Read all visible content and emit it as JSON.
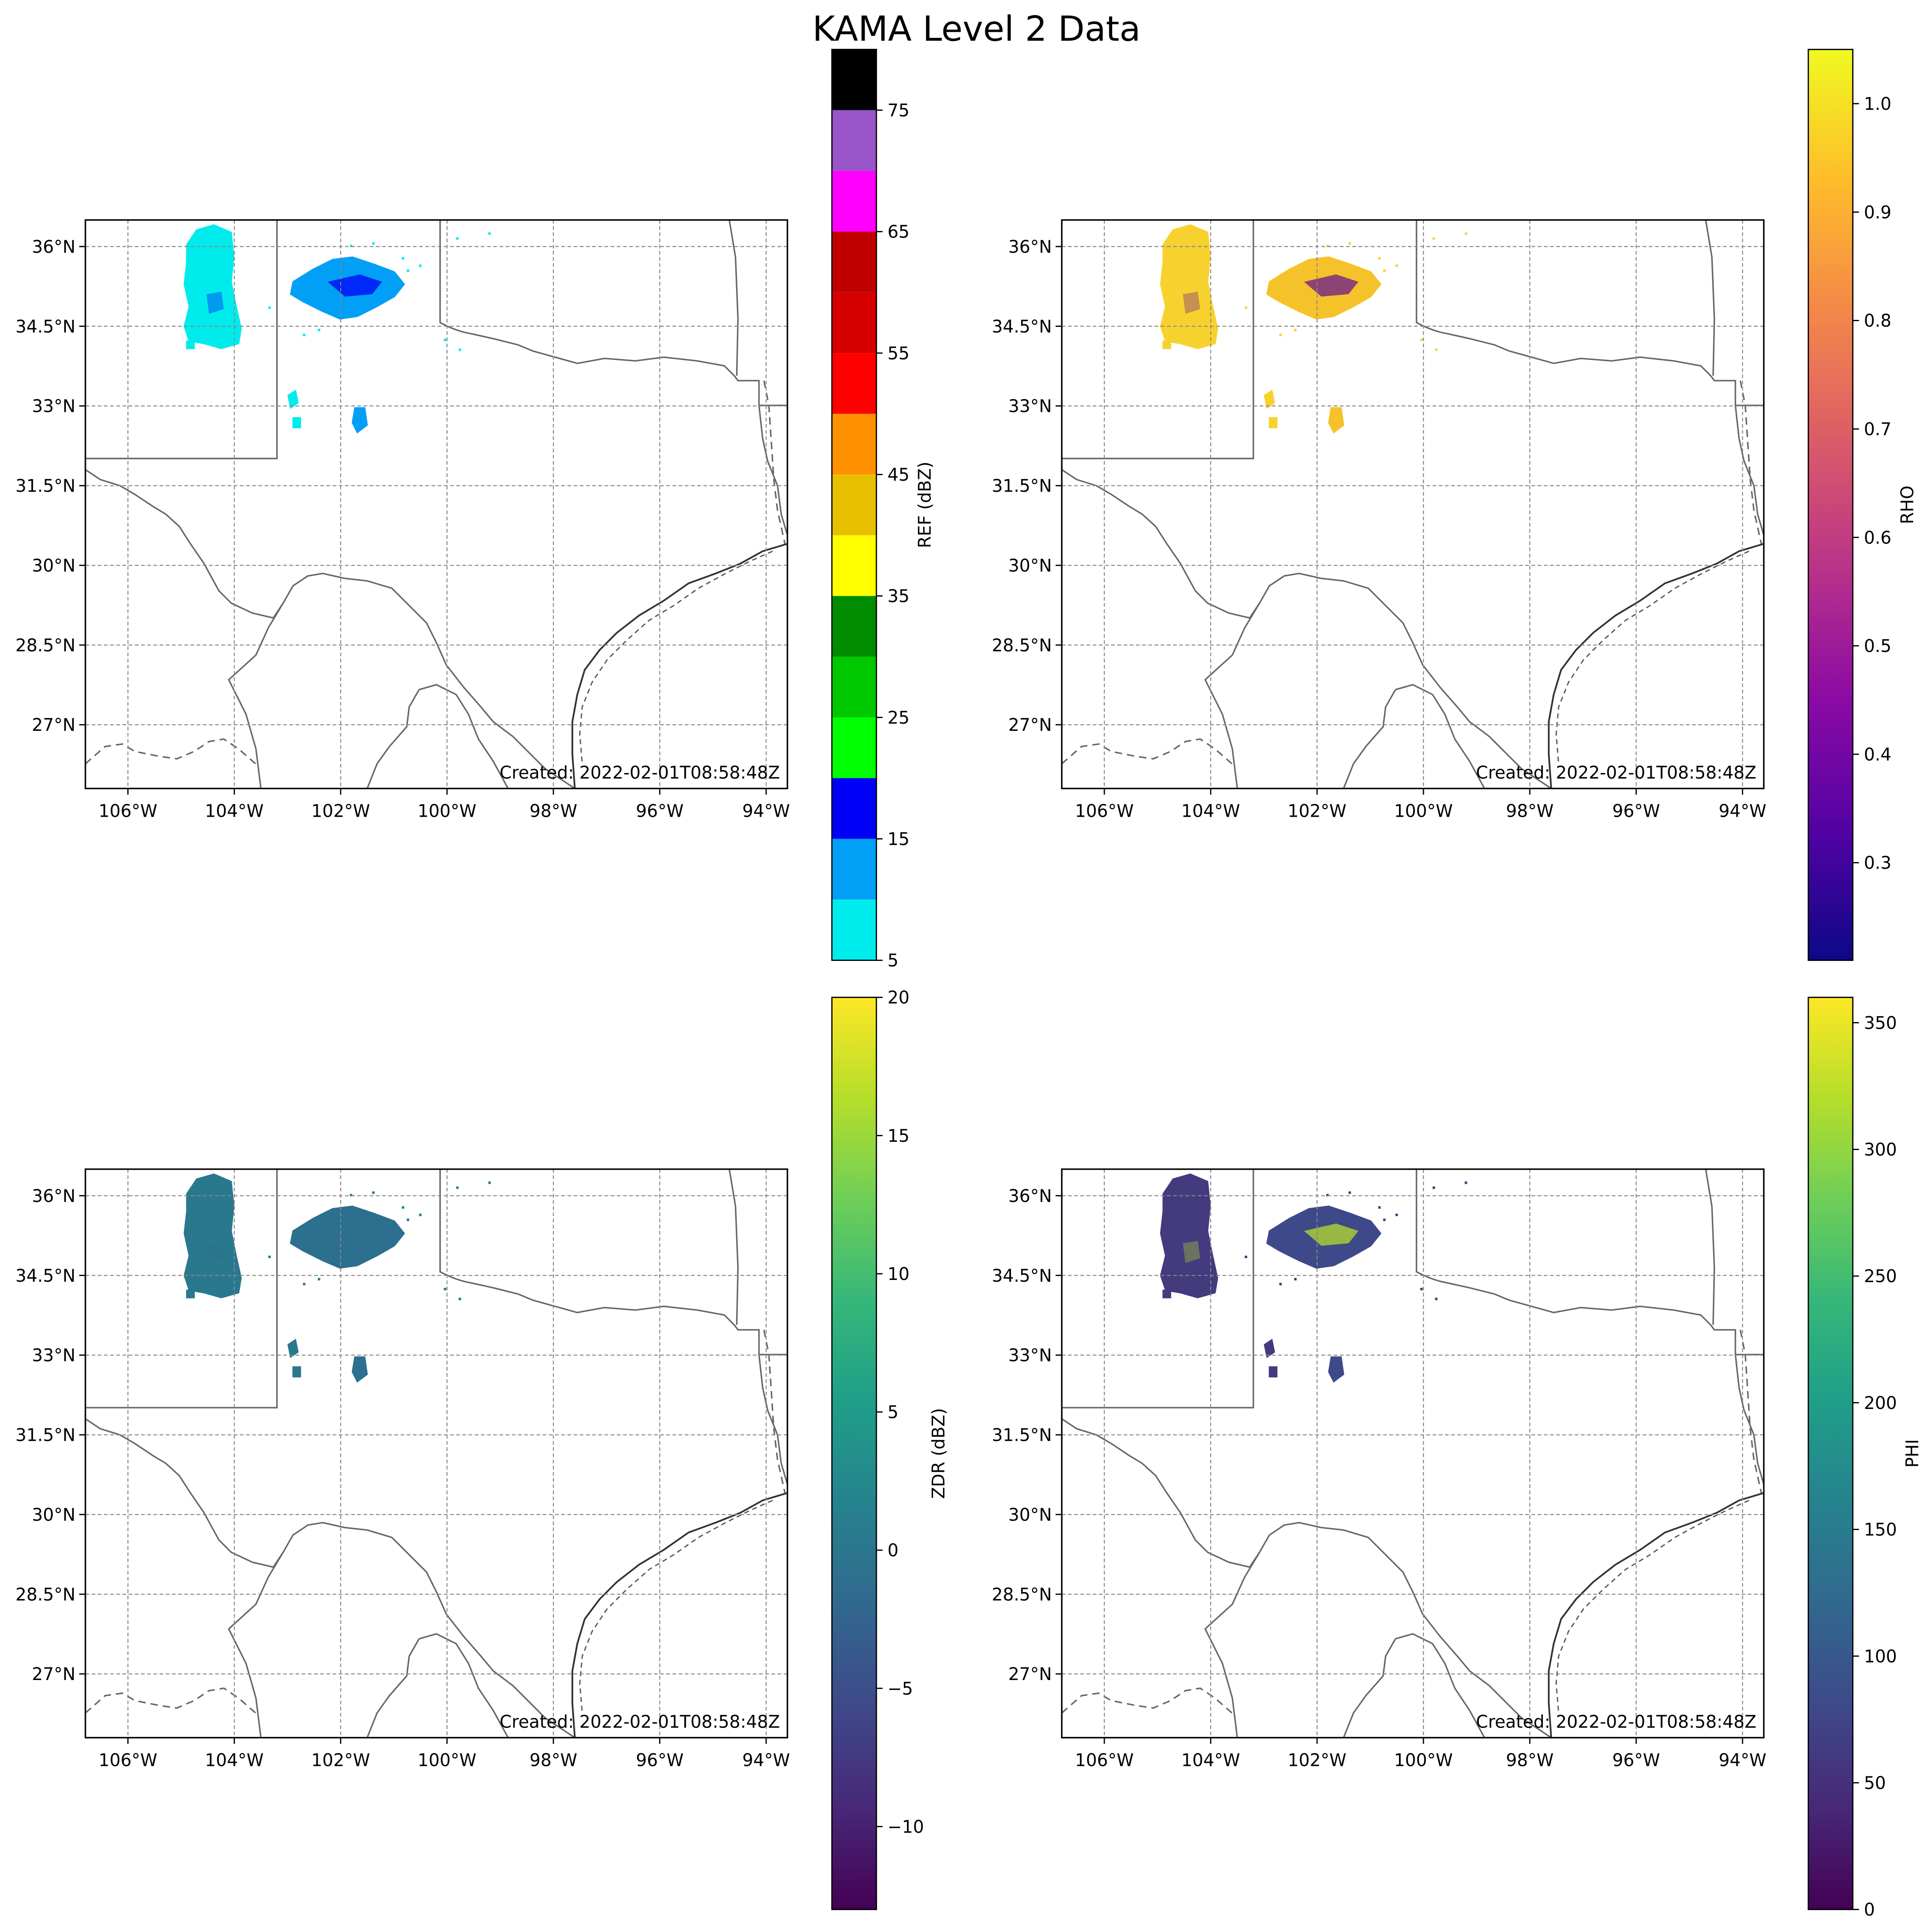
{
  "figure": {
    "title": "KAMA Level 2 Data"
  },
  "map": {
    "lon_range": [
      -106.8,
      -93.6
    ],
    "lat_range": [
      25.8,
      36.5
    ],
    "lon_ticks": [
      {
        "value": -106,
        "label": "106°W"
      },
      {
        "value": -104,
        "label": "104°W"
      },
      {
        "value": -102,
        "label": "102°W"
      },
      {
        "value": -100,
        "label": "100°W"
      },
      {
        "value": -98,
        "label": "98°W"
      },
      {
        "value": -96,
        "label": "96°W"
      },
      {
        "value": -94,
        "label": "94°W"
      }
    ],
    "lat_ticks": [
      {
        "value": 36,
        "label": "36°N"
      },
      {
        "value": 34.5,
        "label": "34.5°N"
      },
      {
        "value": 33,
        "label": "33°N"
      },
      {
        "value": 31.5,
        "label": "31.5°N"
      },
      {
        "value": 30,
        "label": "30°N"
      },
      {
        "value": 28.5,
        "label": "28.5°N"
      },
      {
        "value": 27,
        "label": "27°N"
      }
    ],
    "gridlines": "dashed grey"
  },
  "panels": [
    {
      "id": "ref",
      "field": "REF",
      "timestamp": "Created: 2022-02-01T08:58:48Z",
      "colorbar": {
        "label": "REF (dBZ)",
        "type": "discrete",
        "range": [
          5,
          80
        ],
        "ticks": [
          5,
          15,
          25,
          35,
          45,
          55,
          65,
          75
        ],
        "tick_labels": [
          "5",
          "15",
          "25",
          "35",
          "45",
          "55",
          "65",
          "75"
        ],
        "bins": [
          {
            "from": 5,
            "to": 10,
            "color": "#00ECEC"
          },
          {
            "from": 10,
            "to": 15,
            "color": "#01A0F6"
          },
          {
            "from": 15,
            "to": 20,
            "color": "#0000F6"
          },
          {
            "from": 20,
            "to": 25,
            "color": "#00FF00"
          },
          {
            "from": 25,
            "to": 30,
            "color": "#00C800"
          },
          {
            "from": 30,
            "to": 35,
            "color": "#008C00"
          },
          {
            "from": 35,
            "to": 40,
            "color": "#FFFF00"
          },
          {
            "from": 40,
            "to": 45,
            "color": "#E7C000"
          },
          {
            "from": 45,
            "to": 50,
            "color": "#FF9000"
          },
          {
            "from": 50,
            "to": 55,
            "color": "#FF0000"
          },
          {
            "from": 55,
            "to": 60,
            "color": "#D60000"
          },
          {
            "from": 60,
            "to": 65,
            "color": "#C00000"
          },
          {
            "from": 65,
            "to": 70,
            "color": "#FF00FF"
          },
          {
            "from": 70,
            "to": 75,
            "color": "#9955C9"
          },
          {
            "from": 75,
            "to": 80,
            "color": "#000000"
          }
        ]
      },
      "echo_colors": [
        "#00ECEC",
        "#01A0F6",
        "#00ECEC"
      ],
      "core_color": "#0000F6"
    },
    {
      "id": "rho",
      "field": "RHO",
      "timestamp": "Created: 2022-02-01T08:58:48Z",
      "colorbar": {
        "label": "RHO",
        "type": "continuous",
        "colormap": "plasma",
        "range": [
          0.21,
          1.05
        ],
        "ticks": [
          0.3,
          0.4,
          0.5,
          0.6,
          0.7,
          0.8,
          0.9,
          1.0
        ],
        "tick_labels": [
          "0.3",
          "0.4",
          "0.5",
          "0.6",
          "0.7",
          "0.8",
          "0.9",
          "1.0"
        ],
        "stops": [
          "#0d0887",
          "#5302a3",
          "#8b0aa5",
          "#b83289",
          "#db5c68",
          "#f48849",
          "#febd2a",
          "#f0f921"
        ]
      },
      "echo_colors": [
        "#F7D22E",
        "#F5C22A",
        "#F7D22E"
      ],
      "core_color": "#6a1a8e"
    },
    {
      "id": "zdr",
      "field": "ZDR",
      "timestamp": "Created: 2022-02-01T08:58:48Z",
      "colorbar": {
        "label": "ZDR (dBZ)",
        "type": "continuous",
        "colormap": "viridis",
        "range": [
          -13,
          20
        ],
        "ticks": [
          -10,
          -5,
          0,
          5,
          10,
          15,
          20
        ],
        "tick_labels": [
          "−10",
          "−5",
          "0",
          "5",
          "10",
          "15",
          "20"
        ],
        "stops": [
          "#440154",
          "#482878",
          "#3e4989",
          "#31688e",
          "#26828e",
          "#1f9e89",
          "#35b779",
          "#6ece58",
          "#b5de2b",
          "#fde725"
        ]
      },
      "echo_colors": [
        "#2a788e",
        "#2c6f8e",
        "#2a788e"
      ],
      "core_color": "#2c6f8e"
    },
    {
      "id": "phi",
      "field": "PHI",
      "timestamp": "Created: 2022-02-01T08:58:48Z",
      "colorbar": {
        "label": "PHI",
        "type": "continuous",
        "colormap": "viridis",
        "range": [
          0,
          360
        ],
        "ticks": [
          0,
          50,
          100,
          150,
          200,
          250,
          300,
          350
        ],
        "tick_labels": [
          "0",
          "50",
          "100",
          "150",
          "200",
          "250",
          "300",
          "350"
        ],
        "stops": [
          "#440154",
          "#482878",
          "#3e4989",
          "#31688e",
          "#26828e",
          "#1f9e89",
          "#35b779",
          "#6ece58",
          "#b5de2b",
          "#fde725"
        ]
      },
      "echo_colors": [
        "#433b7d",
        "#3e4989",
        "#433b7d"
      ],
      "core_color": "#b5de2b"
    }
  ]
}
